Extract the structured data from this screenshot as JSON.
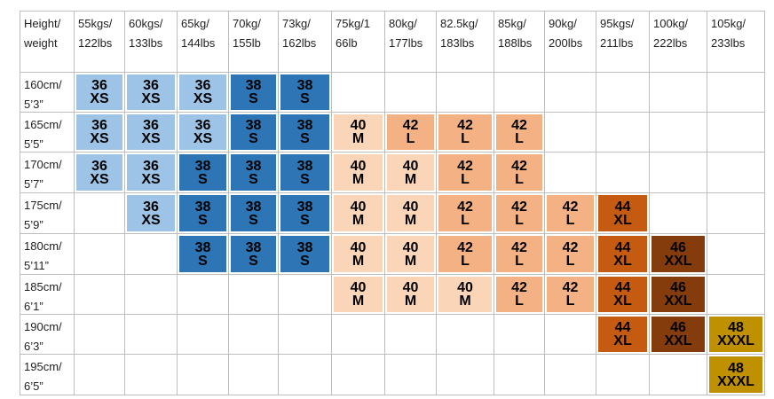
{
  "table": {
    "header": [
      [
        "Height/",
        "weight"
      ],
      [
        "55kgs/",
        "122lbs"
      ],
      [
        "60kgs/",
        "133lbs"
      ],
      [
        "65kg/",
        "144lbs"
      ],
      [
        "70kg/",
        "155lb"
      ],
      [
        "73kg/",
        "162lbs"
      ],
      [
        "75kg/1",
        "66lb"
      ],
      [
        "80kg/",
        "177lbs"
      ],
      [
        "82.5kg/",
        "183lbs"
      ],
      [
        "85kg/",
        "188lbs"
      ],
      [
        "90kg/",
        "200lbs"
      ],
      [
        "95kgs/",
        "211lbs"
      ],
      [
        "100kg/",
        "222lbs"
      ],
      [
        "105kg/",
        "233lbs"
      ]
    ],
    "rows": [
      {
        "height": [
          "160cm/",
          "5’3”"
        ],
        "cells": [
          {
            "size": "36",
            "label": "XS",
            "color": "#9dc3e6"
          },
          {
            "size": "36",
            "label": "XS",
            "color": "#9dc3e6"
          },
          {
            "size": "36",
            "label": "XS",
            "color": "#9dc3e6"
          },
          {
            "size": "38",
            "label": "S",
            "color": "#2e75b6"
          },
          {
            "size": "38",
            "label": "S",
            "color": "#2e75b6"
          },
          null,
          null,
          null,
          null,
          null,
          null,
          null,
          null
        ]
      },
      {
        "height": [
          "165cm/",
          "5’5”"
        ],
        "cells": [
          {
            "size": "36",
            "label": "XS",
            "color": "#9dc3e6"
          },
          {
            "size": "36",
            "label": "XS",
            "color": "#9dc3e6"
          },
          {
            "size": "36",
            "label": "XS",
            "color": "#9dc3e6"
          },
          {
            "size": "38",
            "label": "S",
            "color": "#2e75b6"
          },
          {
            "size": "38",
            "label": "S",
            "color": "#2e75b6"
          },
          {
            "size": "40",
            "label": "M",
            "color": "#fbd5b8"
          },
          {
            "size": "42",
            "label": "L",
            "color": "#f4b183"
          },
          {
            "size": "42",
            "label": "L",
            "color": "#f4b183"
          },
          {
            "size": "42",
            "label": "L",
            "color": "#f4b183"
          },
          null,
          null,
          null,
          null
        ]
      },
      {
        "height": [
          "170cm/",
          "5’7”"
        ],
        "cells": [
          {
            "size": "36",
            "label": "XS",
            "color": "#9dc3e6"
          },
          {
            "size": "36",
            "label": "XS",
            "color": "#9dc3e6"
          },
          {
            "size": "38",
            "label": "S",
            "color": "#2e75b6"
          },
          {
            "size": "38",
            "label": "S",
            "color": "#2e75b6"
          },
          {
            "size": "38",
            "label": "S",
            "color": "#2e75b6"
          },
          {
            "size": "40",
            "label": "M",
            "color": "#fbd5b8"
          },
          {
            "size": "40",
            "label": "M",
            "color": "#fbd5b8"
          },
          {
            "size": "42",
            "label": "L",
            "color": "#f4b183"
          },
          {
            "size": "42",
            "label": "L",
            "color": "#f4b183"
          },
          null,
          null,
          null,
          null
        ]
      },
      {
        "height": [
          "175cm/",
          "5’9”"
        ],
        "cells": [
          null,
          {
            "size": "36",
            "label": "XS",
            "color": "#9dc3e6"
          },
          {
            "size": "38",
            "label": "S",
            "color": "#2e75b6"
          },
          {
            "size": "38",
            "label": "S",
            "color": "#2e75b6"
          },
          {
            "size": "38",
            "label": "S",
            "color": "#2e75b6"
          },
          {
            "size": "40",
            "label": "M",
            "color": "#fbd5b8"
          },
          {
            "size": "40",
            "label": "M",
            "color": "#fbd5b8"
          },
          {
            "size": "42",
            "label": "L",
            "color": "#f4b183"
          },
          {
            "size": "42",
            "label": "L",
            "color": "#f4b183"
          },
          {
            "size": "42",
            "label": "L",
            "color": "#f4b183"
          },
          {
            "size": "44",
            "label": "XL",
            "color": "#c55a11"
          },
          null,
          null
        ]
      },
      {
        "height": [
          "180cm/",
          "5’11”"
        ],
        "cells": [
          null,
          null,
          {
            "size": "38",
            "label": "S",
            "color": "#2e75b6"
          },
          {
            "size": "38",
            "label": "S",
            "color": "#2e75b6"
          },
          {
            "size": "38",
            "label": "S",
            "color": "#2e75b6"
          },
          {
            "size": "40",
            "label": "M",
            "color": "#fbd5b8"
          },
          {
            "size": "40",
            "label": "M",
            "color": "#fbd5b8"
          },
          {
            "size": "42",
            "label": "L",
            "color": "#f4b183"
          },
          {
            "size": "42",
            "label": "L",
            "color": "#f4b183"
          },
          {
            "size": "42",
            "label": "L",
            "color": "#f4b183"
          },
          {
            "size": "44",
            "label": "XL",
            "color": "#c55a11"
          },
          {
            "size": "46",
            "label": "XXL",
            "color": "#843c0c"
          },
          null
        ]
      },
      {
        "height": [
          "185cm/",
          "6’1”"
        ],
        "cells": [
          null,
          null,
          null,
          null,
          null,
          {
            "size": "40",
            "label": "M",
            "color": "#fbd5b8"
          },
          {
            "size": "40",
            "label": "M",
            "color": "#fbd5b8"
          },
          {
            "size": "40",
            "label": "M",
            "color": "#fbd5b8"
          },
          {
            "size": "42",
            "label": "L",
            "color": "#f4b183"
          },
          {
            "size": "42",
            "label": "L",
            "color": "#f4b183"
          },
          {
            "size": "44",
            "label": "XL",
            "color": "#c55a11"
          },
          {
            "size": "46",
            "label": "XXL",
            "color": "#843c0c"
          },
          null
        ]
      },
      {
        "height": [
          "190cm/",
          "6’3”"
        ],
        "cells": [
          null,
          null,
          null,
          null,
          null,
          null,
          null,
          null,
          null,
          null,
          {
            "size": "44",
            "label": "XL",
            "color": "#c55a11"
          },
          {
            "size": "46",
            "label": "XXL",
            "color": "#843c0c"
          },
          {
            "size": "48",
            "label": "XXXL",
            "color": "#bf9000"
          }
        ]
      },
      {
        "height": [
          "195cm/",
          "6’5”"
        ],
        "cells": [
          null,
          null,
          null,
          null,
          null,
          null,
          null,
          null,
          null,
          null,
          null,
          null,
          {
            "size": "48",
            "label": "XXXL",
            "color": "#bf9000"
          }
        ]
      }
    ]
  }
}
